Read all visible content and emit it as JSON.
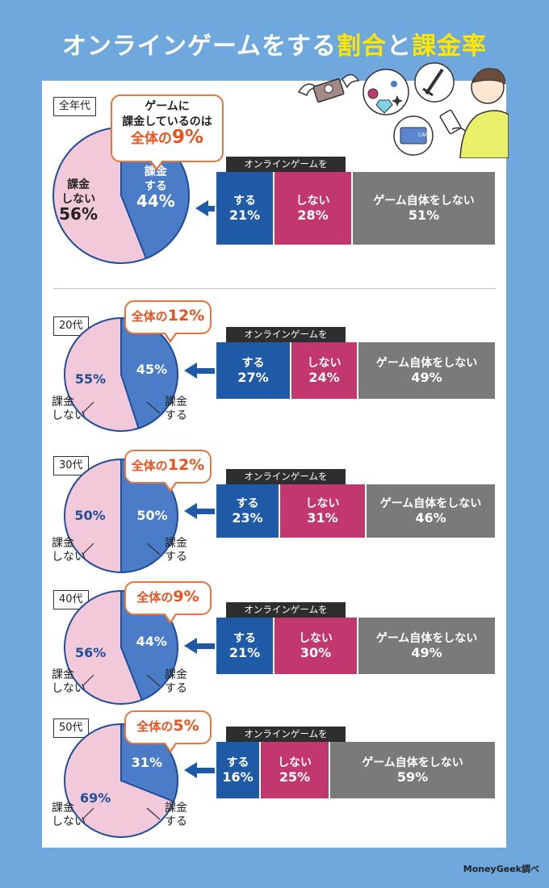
{
  "title": {
    "part1": "オンラインゲームをする",
    "part2": "割合",
    "part3": "と",
    "part4": "課金率"
  },
  "credit": "MoneyGeek調べ",
  "colors": {
    "pay": "#4a7cc7",
    "nopay": "#f1c9d8",
    "yes": "#1f5aa6",
    "no": "#c2386e",
    "none": "#7a7a7a",
    "accent": "#e8531f",
    "background": "#6fa8dc"
  },
  "illustration": [
    "flying-money-icon",
    "gem-icon",
    "sword-icon",
    "credit-card-icon",
    "smartphone-player-icon"
  ],
  "card_text": "CARD",
  "chart_data": [
    {
      "type": "pie",
      "title": "全年代",
      "bubble": {
        "line1": "ゲームに",
        "line2": "課金しているのは",
        "prefix": "全体の",
        "value": "9%"
      },
      "slices": [
        {
          "name": "課金する",
          "value": 44
        },
        {
          "name": "課金しない",
          "value": 56
        }
      ],
      "slice_labels": {
        "pay": "課金\nする",
        "nopay": "課金\nしない"
      },
      "bar": {
        "type": "bar",
        "title": "オンラインゲームを",
        "categories": [
          "する",
          "しない",
          "ゲーム自体をしない"
        ],
        "values": [
          21,
          28,
          51
        ]
      }
    },
    {
      "type": "pie",
      "title": "20代",
      "bubble": {
        "prefix": "全体の",
        "value": "12%"
      },
      "slices": [
        {
          "name": "課金する",
          "value": 45
        },
        {
          "name": "課金しない",
          "value": 55
        }
      ],
      "slice_labels": {
        "pay": "課金\nする",
        "nopay": "課金\nしない"
      },
      "bar": {
        "type": "bar",
        "title": "オンラインゲームを",
        "categories": [
          "する",
          "しない",
          "ゲーム自体をしない"
        ],
        "values": [
          27,
          24,
          49
        ]
      }
    },
    {
      "type": "pie",
      "title": "30代",
      "bubble": {
        "prefix": "全体の",
        "value": "12%"
      },
      "slices": [
        {
          "name": "課金する",
          "value": 50
        },
        {
          "name": "課金しない",
          "value": 50
        }
      ],
      "slice_labels": {
        "pay": "課金\nする",
        "nopay": "課金\nしない"
      },
      "bar": {
        "type": "bar",
        "title": "オンラインゲームを",
        "categories": [
          "する",
          "しない",
          "ゲーム自体をしない"
        ],
        "values": [
          23,
          31,
          46
        ]
      }
    },
    {
      "type": "pie",
      "title": "40代",
      "bubble": {
        "prefix": "全体の",
        "value": "9%"
      },
      "slices": [
        {
          "name": "課金する",
          "value": 44
        },
        {
          "name": "課金しない",
          "value": 56
        }
      ],
      "slice_labels": {
        "pay": "課金\nする",
        "nopay": "課金\nしない"
      },
      "bar": {
        "type": "bar",
        "title": "オンラインゲームを",
        "categories": [
          "する",
          "しない",
          "ゲーム自体をしない"
        ],
        "values": [
          21,
          30,
          49
        ]
      }
    },
    {
      "type": "pie",
      "title": "50代",
      "bubble": {
        "prefix": "全体の",
        "value": "5%"
      },
      "slices": [
        {
          "name": "課金する",
          "value": 31
        },
        {
          "name": "課金しない",
          "value": 69
        }
      ],
      "slice_labels": {
        "pay": "課金\nする",
        "nopay": "課金\nしない"
      },
      "bar": {
        "type": "bar",
        "title": "オンラインゲームを",
        "categories": [
          "する",
          "しない",
          "ゲーム自体をしない"
        ],
        "values": [
          16,
          25,
          59
        ]
      }
    }
  ]
}
